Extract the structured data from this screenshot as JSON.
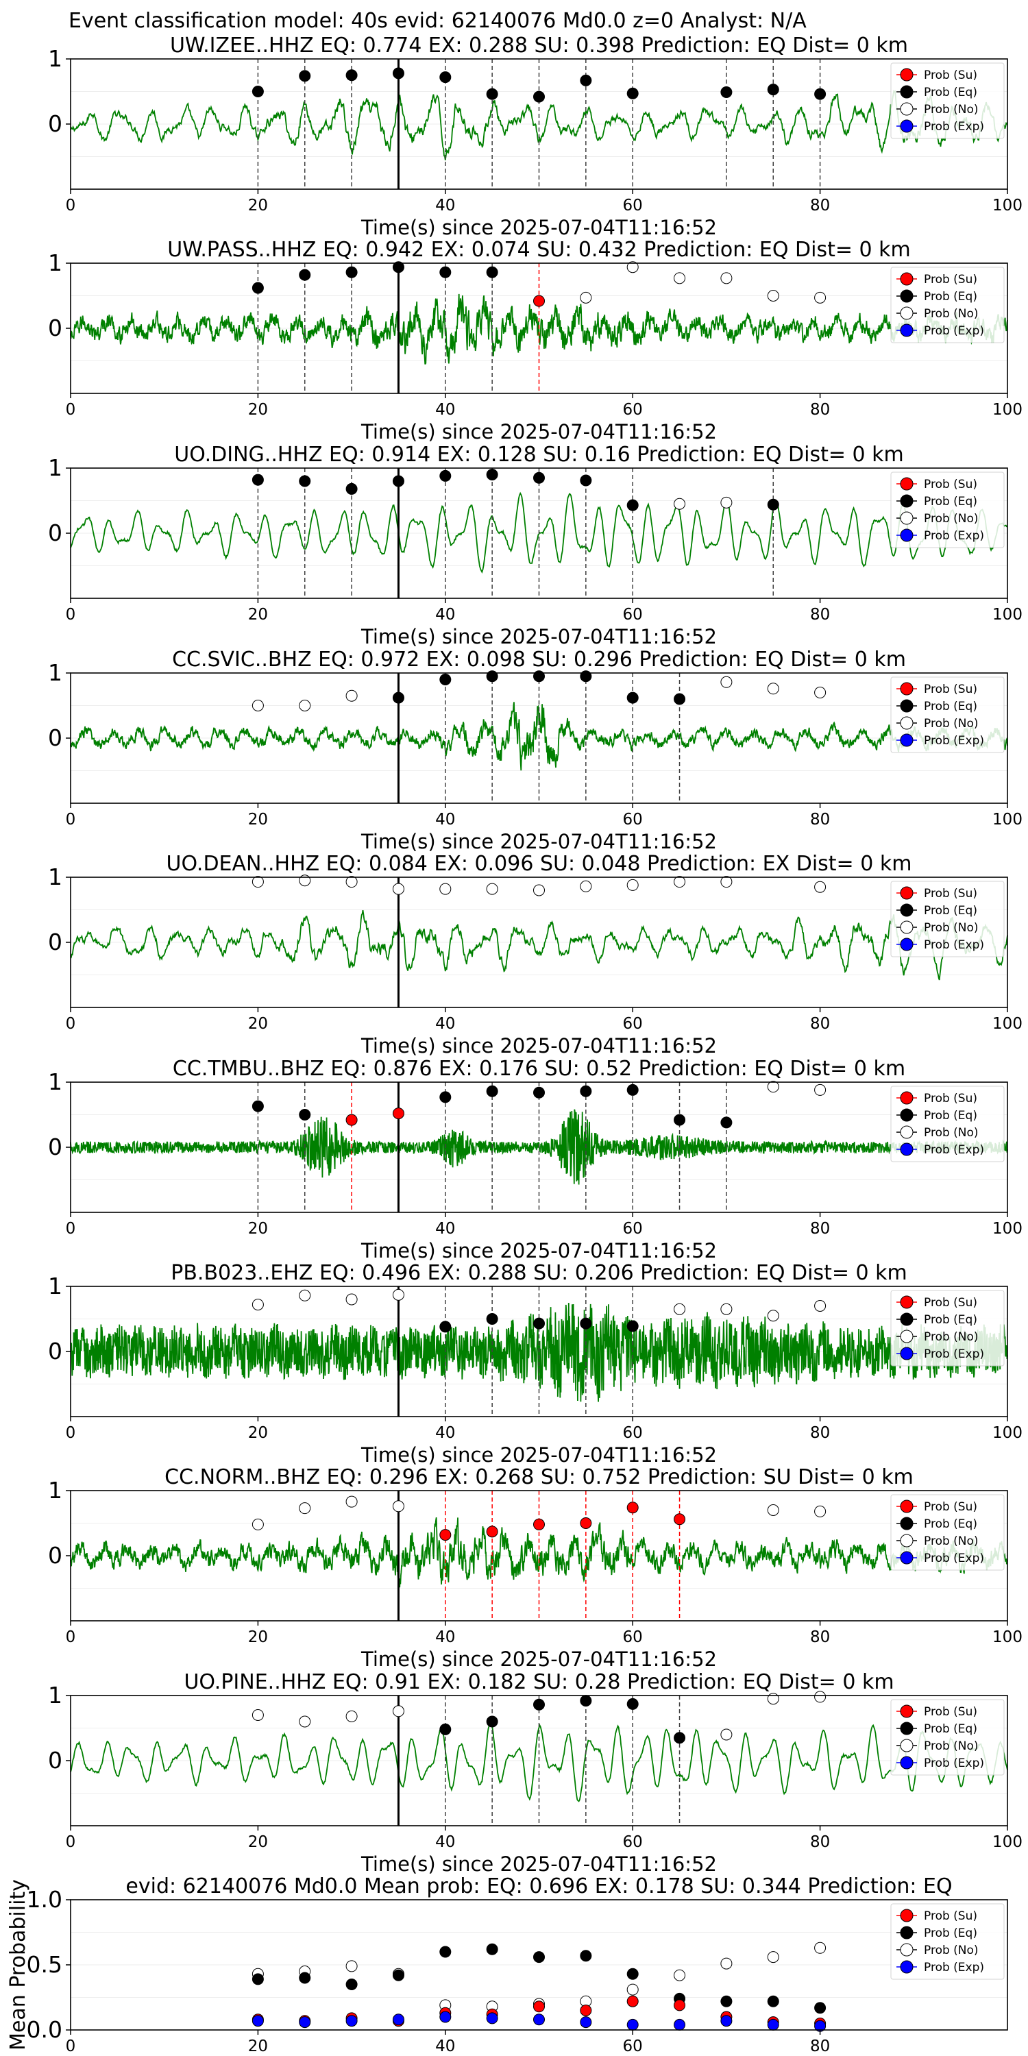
{
  "figure_title": "Event classification model: 40s evid: 62140076 Md0.0 z=0 Analyst: N/A",
  "legend": [
    {
      "label": "Prob (Su)",
      "color": "#ff0000",
      "filled": true
    },
    {
      "label": "Prob (Eq)",
      "color": "#000000",
      "filled": true
    },
    {
      "label": "Prob (No)",
      "color": "#ffffff",
      "filled": false
    },
    {
      "label": "Prob (Exp)",
      "color": "#0000ff",
      "filled": true
    }
  ],
  "colors": {
    "trace": "#008000",
    "marker_edge": "#000000",
    "axis": "#000000",
    "origin_line": "#000000"
  },
  "chart_data": [
    {
      "type": "line",
      "station": "UW.IZEE..HHZ",
      "title": "UW.IZEE..HHZ   EQ: 0.774  EX: 0.288  SU: 0.398   Prediction: EQ    Dist= 0 km",
      "xlabel": "Time(s) since 2025-07-04T11:16:52",
      "xlim": [
        0,
        100
      ],
      "ylim": [
        -1,
        1
      ],
      "xticks": [
        "0",
        "20",
        "40",
        "60",
        "80",
        "100"
      ],
      "yticks": [
        "1",
        "0"
      ],
      "waveform": "lowfreq",
      "origin_time": 35,
      "points": [
        {
          "x": 20,
          "y": 0.5,
          "cls": "Eq"
        },
        {
          "x": 25,
          "y": 0.74,
          "cls": "Eq"
        },
        {
          "x": 30,
          "y": 0.75,
          "cls": "Eq"
        },
        {
          "x": 35,
          "y": 0.78,
          "cls": "Eq"
        },
        {
          "x": 40,
          "y": 0.72,
          "cls": "Eq"
        },
        {
          "x": 45,
          "y": 0.46,
          "cls": "Eq"
        },
        {
          "x": 50,
          "y": 0.42,
          "cls": "Eq"
        },
        {
          "x": 55,
          "y": 0.67,
          "cls": "Eq"
        },
        {
          "x": 60,
          "y": 0.47,
          "cls": "Eq"
        },
        {
          "x": 70,
          "y": 0.49,
          "cls": "Eq"
        },
        {
          "x": 75,
          "y": 0.53,
          "cls": "Eq"
        },
        {
          "x": 80,
          "y": 0.46,
          "cls": "Eq"
        }
      ]
    },
    {
      "type": "line",
      "station": "UW.PASS..HHZ",
      "title": "UW.PASS..HHZ   EQ: 0.942  EX: 0.074  SU: 0.432   Prediction: EQ    Dist= 0 km",
      "xlabel": "Time(s) since 2025-07-04T11:16:52",
      "xlim": [
        0,
        100
      ],
      "ylim": [
        -1,
        1
      ],
      "xticks": [
        "0",
        "20",
        "40",
        "60",
        "80",
        "100"
      ],
      "yticks": [
        "1",
        "0"
      ],
      "waveform": "noisy",
      "origin_time": 35,
      "points": [
        {
          "x": 20,
          "y": 0.62,
          "cls": "Eq"
        },
        {
          "x": 25,
          "y": 0.82,
          "cls": "Eq"
        },
        {
          "x": 30,
          "y": 0.86,
          "cls": "Eq"
        },
        {
          "x": 35,
          "y": 0.94,
          "cls": "Eq"
        },
        {
          "x": 40,
          "y": 0.86,
          "cls": "Eq"
        },
        {
          "x": 45,
          "y": 0.86,
          "cls": "Eq"
        },
        {
          "x": 50,
          "y": 0.42,
          "cls": "Su"
        },
        {
          "x": 55,
          "y": 0.47,
          "cls": "No"
        },
        {
          "x": 60,
          "y": 0.94,
          "cls": "No"
        },
        {
          "x": 65,
          "y": 0.77,
          "cls": "No"
        },
        {
          "x": 70,
          "y": 0.77,
          "cls": "No"
        },
        {
          "x": 75,
          "y": 0.5,
          "cls": "No"
        },
        {
          "x": 80,
          "y": 0.47,
          "cls": "No"
        }
      ]
    },
    {
      "type": "line",
      "station": "UO.DING..HHZ",
      "title": "UO.DING..HHZ   EQ: 0.914  EX: 0.128  SU: 0.16   Prediction: EQ    Dist= 0 km",
      "xlabel": "Time(s) since 2025-07-04T11:16:52",
      "xlim": [
        0,
        100
      ],
      "ylim": [
        -1,
        1
      ],
      "xticks": [
        "0",
        "20",
        "40",
        "60",
        "80",
        "100"
      ],
      "yticks": [
        "1",
        "0"
      ],
      "waveform": "smooth",
      "origin_time": 35,
      "points": [
        {
          "x": 20,
          "y": 0.82,
          "cls": "Eq"
        },
        {
          "x": 25,
          "y": 0.8,
          "cls": "Eq"
        },
        {
          "x": 30,
          "y": 0.68,
          "cls": "Eq"
        },
        {
          "x": 35,
          "y": 0.8,
          "cls": "Eq"
        },
        {
          "x": 40,
          "y": 0.88,
          "cls": "Eq"
        },
        {
          "x": 45,
          "y": 0.9,
          "cls": "Eq"
        },
        {
          "x": 50,
          "y": 0.85,
          "cls": "Eq"
        },
        {
          "x": 55,
          "y": 0.81,
          "cls": "Eq"
        },
        {
          "x": 60,
          "y": 0.43,
          "cls": "Eq"
        },
        {
          "x": 65,
          "y": 0.45,
          "cls": "No"
        },
        {
          "x": 70,
          "y": 0.47,
          "cls": "No"
        },
        {
          "x": 75,
          "y": 0.44,
          "cls": "Eq"
        }
      ]
    },
    {
      "type": "line",
      "station": "CC.SVIC..BHZ",
      "title": "CC.SVIC..BHZ   EQ: 0.972  EX: 0.098  SU: 0.296   Prediction: EQ    Dist= 0 km",
      "xlabel": "Time(s) since 2025-07-04T11:16:52",
      "xlim": [
        0,
        100
      ],
      "ylim": [
        -1,
        1
      ],
      "xticks": [
        "0",
        "20",
        "40",
        "60",
        "80",
        "100"
      ],
      "yticks": [
        "1",
        "0"
      ],
      "waveform": "burst50",
      "origin_time": 35,
      "points": [
        {
          "x": 20,
          "y": 0.5,
          "cls": "No"
        },
        {
          "x": 25,
          "y": 0.5,
          "cls": "No"
        },
        {
          "x": 30,
          "y": 0.65,
          "cls": "No"
        },
        {
          "x": 35,
          "y": 0.62,
          "cls": "Eq"
        },
        {
          "x": 40,
          "y": 0.9,
          "cls": "Eq"
        },
        {
          "x": 45,
          "y": 0.95,
          "cls": "Eq"
        },
        {
          "x": 50,
          "y": 0.95,
          "cls": "Eq"
        },
        {
          "x": 55,
          "y": 0.95,
          "cls": "Eq"
        },
        {
          "x": 60,
          "y": 0.62,
          "cls": "Eq"
        },
        {
          "x": 65,
          "y": 0.6,
          "cls": "Eq"
        },
        {
          "x": 70,
          "y": 0.86,
          "cls": "No"
        },
        {
          "x": 75,
          "y": 0.76,
          "cls": "No"
        },
        {
          "x": 80,
          "y": 0.7,
          "cls": "No"
        }
      ]
    },
    {
      "type": "line",
      "station": "UO.DEAN..HHZ",
      "title": "UO.DEAN..HHZ   EQ: 0.084  EX: 0.096  SU: 0.048   Prediction: EX    Dist= 0 km",
      "xlabel": "Time(s) since 2025-07-04T11:16:52",
      "xlim": [
        0,
        100
      ],
      "ylim": [
        -1,
        1
      ],
      "xticks": [
        "0",
        "20",
        "40",
        "60",
        "80",
        "100"
      ],
      "yticks": [
        "1",
        "0"
      ],
      "waveform": "lowfreq",
      "origin_time": 35,
      "points": [
        {
          "x": 20,
          "y": 0.93,
          "cls": "No"
        },
        {
          "x": 25,
          "y": 0.95,
          "cls": "No"
        },
        {
          "x": 30,
          "y": 0.93,
          "cls": "No"
        },
        {
          "x": 35,
          "y": 0.82,
          "cls": "No"
        },
        {
          "x": 40,
          "y": 0.82,
          "cls": "No"
        },
        {
          "x": 45,
          "y": 0.82,
          "cls": "No"
        },
        {
          "x": 50,
          "y": 0.8,
          "cls": "No"
        },
        {
          "x": 55,
          "y": 0.86,
          "cls": "No"
        },
        {
          "x": 60,
          "y": 0.88,
          "cls": "No"
        },
        {
          "x": 65,
          "y": 0.93,
          "cls": "No"
        },
        {
          "x": 70,
          "y": 0.93,
          "cls": "No"
        },
        {
          "x": 80,
          "y": 0.85,
          "cls": "No"
        }
      ]
    },
    {
      "type": "line",
      "station": "CC.TMBU..BHZ",
      "title": "CC.TMBU..BHZ   EQ: 0.876  EX: 0.176  SU: 0.52   Prediction: EQ    Dist= 0 km",
      "xlabel": "Time(s) since 2025-07-04T11:16:52",
      "xlim": [
        0,
        100
      ],
      "ylim": [
        -1,
        1
      ],
      "xticks": [
        "0",
        "20",
        "40",
        "60",
        "80",
        "100"
      ],
      "yticks": [
        "1",
        "0"
      ],
      "waveform": "bursts",
      "origin_time": 35,
      "points": [
        {
          "x": 20,
          "y": 0.63,
          "cls": "Eq"
        },
        {
          "x": 25,
          "y": 0.5,
          "cls": "Eq"
        },
        {
          "x": 30,
          "y": 0.42,
          "cls": "Su"
        },
        {
          "x": 35,
          "y": 0.52,
          "cls": "Su"
        },
        {
          "x": 40,
          "y": 0.77,
          "cls": "Eq"
        },
        {
          "x": 45,
          "y": 0.86,
          "cls": "Eq"
        },
        {
          "x": 50,
          "y": 0.84,
          "cls": "Eq"
        },
        {
          "x": 55,
          "y": 0.86,
          "cls": "Eq"
        },
        {
          "x": 60,
          "y": 0.88,
          "cls": "Eq"
        },
        {
          "x": 65,
          "y": 0.42,
          "cls": "Eq"
        },
        {
          "x": 70,
          "y": 0.38,
          "cls": "Eq"
        },
        {
          "x": 75,
          "y": 0.93,
          "cls": "No"
        },
        {
          "x": 80,
          "y": 0.88,
          "cls": "No"
        }
      ]
    },
    {
      "type": "line",
      "station": "PB.B023..EHZ",
      "title": "PB.B023..EHZ   EQ: 0.496  EX: 0.288  SU: 0.206   Prediction: EQ    Dist= 0 km",
      "xlabel": "Time(s) since 2025-07-04T11:16:52",
      "xlim": [
        0,
        100
      ],
      "ylim": [
        -1,
        1
      ],
      "xticks": [
        "0",
        "20",
        "40",
        "60",
        "80",
        "100"
      ],
      "yticks": [
        "1",
        "0"
      ],
      "waveform": "veryNoisy",
      "origin_time": 35,
      "points": [
        {
          "x": 20,
          "y": 0.72,
          "cls": "No"
        },
        {
          "x": 25,
          "y": 0.86,
          "cls": "No"
        },
        {
          "x": 30,
          "y": 0.8,
          "cls": "No"
        },
        {
          "x": 35,
          "y": 0.87,
          "cls": "No"
        },
        {
          "x": 40,
          "y": 0.38,
          "cls": "Eq"
        },
        {
          "x": 45,
          "y": 0.5,
          "cls": "Eq"
        },
        {
          "x": 50,
          "y": 0.43,
          "cls": "Eq"
        },
        {
          "x": 55,
          "y": 0.43,
          "cls": "Eq"
        },
        {
          "x": 60,
          "y": 0.39,
          "cls": "Eq"
        },
        {
          "x": 65,
          "y": 0.65,
          "cls": "No"
        },
        {
          "x": 70,
          "y": 0.65,
          "cls": "No"
        },
        {
          "x": 75,
          "y": 0.55,
          "cls": "No"
        },
        {
          "x": 80,
          "y": 0.7,
          "cls": "No"
        }
      ]
    },
    {
      "type": "line",
      "station": "CC.NORM..BHZ",
      "title": "CC.NORM..BHZ   EQ: 0.296  EX: 0.268  SU: 0.752   Prediction: SU    Dist= 0 km",
      "xlabel": "Time(s) since 2025-07-04T11:16:52",
      "xlim": [
        0,
        100
      ],
      "ylim": [
        -1,
        1
      ],
      "xticks": [
        "0",
        "20",
        "40",
        "60",
        "80",
        "100"
      ],
      "yticks": [
        "1",
        "0"
      ],
      "waveform": "noisy",
      "origin_time": 35,
      "points": [
        {
          "x": 20,
          "y": 0.48,
          "cls": "No"
        },
        {
          "x": 25,
          "y": 0.73,
          "cls": "No"
        },
        {
          "x": 30,
          "y": 0.83,
          "cls": "No"
        },
        {
          "x": 35,
          "y": 0.76,
          "cls": "No"
        },
        {
          "x": 40,
          "y": 0.32,
          "cls": "Su"
        },
        {
          "x": 45,
          "y": 0.37,
          "cls": "Su"
        },
        {
          "x": 50,
          "y": 0.48,
          "cls": "Su"
        },
        {
          "x": 55,
          "y": 0.5,
          "cls": "Su"
        },
        {
          "x": 60,
          "y": 0.74,
          "cls": "Su"
        },
        {
          "x": 65,
          "y": 0.56,
          "cls": "Su"
        },
        {
          "x": 75,
          "y": 0.7,
          "cls": "No"
        },
        {
          "x": 80,
          "y": 0.68,
          "cls": "No"
        }
      ]
    },
    {
      "type": "line",
      "station": "UO.PINE..HHZ",
      "title": "UO.PINE..HHZ   EQ: 0.91  EX: 0.182  SU: 0.28   Prediction: EQ    Dist= 0 km",
      "xlabel": "Time(s) since 2025-07-04T11:16:52",
      "xlim": [
        0,
        100
      ],
      "ylim": [
        -1,
        1
      ],
      "xticks": [
        "0",
        "20",
        "40",
        "60",
        "80",
        "100"
      ],
      "yticks": [
        "1",
        "0"
      ],
      "waveform": "smooth",
      "origin_time": 35,
      "points": [
        {
          "x": 20,
          "y": 0.7,
          "cls": "No"
        },
        {
          "x": 25,
          "y": 0.6,
          "cls": "No"
        },
        {
          "x": 30,
          "y": 0.68,
          "cls": "No"
        },
        {
          "x": 35,
          "y": 0.76,
          "cls": "No"
        },
        {
          "x": 40,
          "y": 0.48,
          "cls": "Eq"
        },
        {
          "x": 45,
          "y": 0.6,
          "cls": "Eq"
        },
        {
          "x": 50,
          "y": 0.86,
          "cls": "Eq"
        },
        {
          "x": 55,
          "y": 0.92,
          "cls": "Eq"
        },
        {
          "x": 60,
          "y": 0.87,
          "cls": "Eq"
        },
        {
          "x": 65,
          "y": 0.35,
          "cls": "Eq"
        },
        {
          "x": 70,
          "y": 0.4,
          "cls": "No"
        },
        {
          "x": 75,
          "y": 0.95,
          "cls": "No"
        },
        {
          "x": 80,
          "y": 0.98,
          "cls": "No"
        }
      ]
    },
    {
      "type": "scatter",
      "station": "mean",
      "title": "evid: 62140076  Md0.0   Mean prob:    EQ: 0.696  EX: 0.178  SU: 0.344   Prediction: EQ",
      "ylabel": "Mean Probability",
      "xlim": [
        0,
        100
      ],
      "ylim": [
        0,
        1
      ],
      "xticks": [
        "0",
        "20",
        "40",
        "60",
        "80"
      ],
      "yticks": [
        "1.0",
        "0.5",
        "0.0"
      ],
      "x": [
        20,
        25,
        30,
        35,
        40,
        45,
        50,
        55,
        60,
        65,
        70,
        75,
        80
      ],
      "series": [
        {
          "name": "Prob (No)",
          "values": [
            0.43,
            0.45,
            0.49,
            0.43,
            0.19,
            0.18,
            0.2,
            0.22,
            0.31,
            0.42,
            0.51,
            0.56,
            0.63
          ]
        },
        {
          "name": "Prob (Eq)",
          "values": [
            0.39,
            0.4,
            0.35,
            0.42,
            0.6,
            0.62,
            0.56,
            0.57,
            0.43,
            0.24,
            0.22,
            0.22,
            0.17
          ]
        },
        {
          "name": "Prob (Su)",
          "values": [
            0.08,
            0.07,
            0.09,
            0.07,
            0.13,
            0.12,
            0.18,
            0.15,
            0.22,
            0.19,
            0.1,
            0.06,
            0.05
          ]
        },
        {
          "name": "Prob (Exp)",
          "values": [
            0.07,
            0.06,
            0.07,
            0.08,
            0.1,
            0.09,
            0.08,
            0.06,
            0.04,
            0.04,
            0.07,
            0.04,
            0.03
          ]
        }
      ]
    }
  ]
}
